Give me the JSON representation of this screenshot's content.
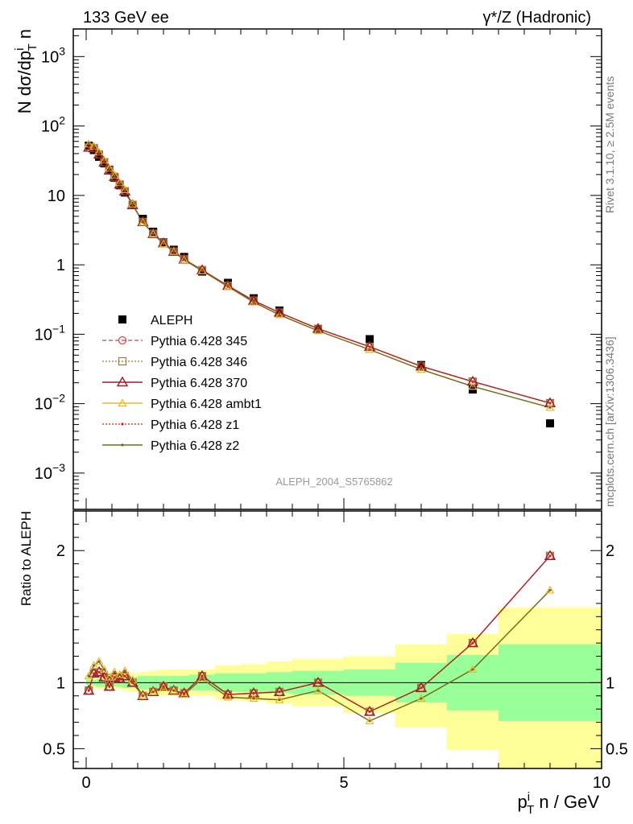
{
  "header": {
    "left": "133 GeV ee",
    "right": "γ*/Z (Hadronic)"
  },
  "side_labels": {
    "rivet": "Rivet 3.1.10, ≥ 2.5M events",
    "source": "mcplots.cern.ch [arXiv:1306.3436]"
  },
  "analysis_tag": "ALEPH_2004_S5765862",
  "colors": {
    "data": "#000000",
    "p345": "#c8464b",
    "p346": "#a0783c",
    "p370": "#9b1e28",
    "ambt1": "#f0b428",
    "z1": "#dc1e14",
    "z2": "#6e6e1e",
    "band_inner": "#99ff99",
    "band_outer": "#ffff99"
  },
  "chart_data": [
    {
      "type": "scatter",
      "panel": "main",
      "ylabel": "N dσ/dp_T^i n",
      "yscale": "log",
      "ylim": [
        0.0003,
        2500
      ],
      "xlim": [
        -0.25,
        10
      ],
      "yticks": [
        "10^-3",
        "10^-2",
        "10^-1",
        "1",
        "10",
        "10^2",
        "10^3"
      ],
      "legend_position": "left-middle",
      "x": [
        0.05,
        0.15,
        0.25,
        0.35,
        0.45,
        0.55,
        0.65,
        0.75,
        0.9,
        1.1,
        1.3,
        1.5,
        1.7,
        1.9,
        2.25,
        2.75,
        3.25,
        3.75,
        4.5,
        5.5,
        6.5,
        7.5,
        9.0
      ],
      "series": [
        {
          "name": "ALEPH",
          "key": "data",
          "values": [
            52,
            45,
            36,
            29,
            23.5,
            18,
            14,
            11,
            7.3,
            4.6,
            3.0,
            2.1,
            1.65,
            1.3,
            0.8,
            0.55,
            0.33,
            0.22,
            0.12,
            0.085,
            0.036,
            0.016,
            0.0052
          ]
        },
        {
          "name": "Pythia 6.428 345",
          "key": "p345",
          "values": [
            49,
            48,
            39,
            30,
            23,
            18.5,
            14.4,
            11.5,
            7.3,
            4.15,
            2.8,
            2.05,
            1.55,
            1.2,
            0.84,
            0.5,
            0.305,
            0.205,
            0.12,
            0.066,
            0.0345,
            0.0208,
            0.0102
          ]
        },
        {
          "name": "Pythia 6.428 346",
          "key": "p346",
          "values": [
            49,
            48,
            39,
            30,
            23,
            18.5,
            14.4,
            11.5,
            7.3,
            4.15,
            2.8,
            2.05,
            1.55,
            1.2,
            0.84,
            0.5,
            0.305,
            0.205,
            0.12,
            0.066,
            0.0345,
            0.0208,
            0.0102
          ]
        },
        {
          "name": "Pythia 6.428 370",
          "key": "p370",
          "values": [
            49,
            48,
            39,
            30,
            23,
            18.5,
            14.4,
            11.5,
            7.3,
            4.15,
            2.8,
            2.05,
            1.55,
            1.2,
            0.84,
            0.5,
            0.305,
            0.205,
            0.12,
            0.066,
            0.0345,
            0.0208,
            0.0102
          ]
        },
        {
          "name": "Pythia 6.428 ambt1",
          "key": "ambt1",
          "values": [
            55,
            51,
            42,
            32,
            24.5,
            19.5,
            15.2,
            12,
            7.5,
            4.1,
            2.8,
            2.0,
            1.55,
            1.18,
            0.82,
            0.485,
            0.29,
            0.19,
            0.112,
            0.06,
            0.031,
            0.0177,
            0.0088
          ]
        },
        {
          "name": "Pythia 6.428 z1",
          "key": "z1",
          "values": [
            49,
            48,
            39,
            30,
            23,
            18.5,
            14.4,
            11.5,
            7.3,
            4.15,
            2.8,
            2.05,
            1.55,
            1.2,
            0.84,
            0.5,
            0.305,
            0.205,
            0.12,
            0.066,
            0.0345,
            0.0208,
            0.0102
          ]
        },
        {
          "name": "Pythia 6.428 z2",
          "key": "z2",
          "values": [
            55,
            51,
            42,
            32,
            24.5,
            19.5,
            15.2,
            12,
            7.5,
            4.1,
            2.8,
            2.0,
            1.55,
            1.18,
            0.82,
            0.485,
            0.29,
            0.19,
            0.112,
            0.06,
            0.031,
            0.0177,
            0.0088
          ]
        }
      ]
    },
    {
      "type": "line",
      "panel": "ratio",
      "xlabel": "p_T^i n / GeV",
      "ylabel": "Ratio to ALEPH",
      "ylim": [
        0.35,
        2.3
      ],
      "xlim": [
        -0.25,
        10
      ],
      "xticks": [
        0,
        5,
        10
      ],
      "yticks": [
        0.5,
        1,
        2
      ],
      "x": [
        0.05,
        0.15,
        0.25,
        0.35,
        0.45,
        0.55,
        0.65,
        0.75,
        0.9,
        1.1,
        1.3,
        1.5,
        1.7,
        1.9,
        2.25,
        2.75,
        3.25,
        3.75,
        4.5,
        5.5,
        6.5,
        7.5,
        9.0
      ],
      "series": [
        {
          "name": "Pythia 6.428 345",
          "key": "p345",
          "values": [
            0.94,
            1.07,
            1.08,
            1.04,
            0.97,
            1.04,
            1.03,
            1.05,
            1.0,
            0.9,
            0.93,
            0.97,
            0.94,
            0.92,
            1.05,
            0.91,
            0.92,
            0.93,
            1.0,
            0.78,
            0.96,
            1.3,
            1.96
          ]
        },
        {
          "name": "Pythia 6.428 346",
          "key": "p346",
          "values": [
            0.94,
            1.07,
            1.08,
            1.04,
            0.97,
            1.04,
            1.03,
            1.05,
            1.0,
            0.9,
            0.93,
            0.97,
            0.94,
            0.92,
            1.05,
            0.91,
            0.92,
            0.93,
            1.0,
            0.78,
            0.96,
            1.3,
            1.96
          ]
        },
        {
          "name": "Pythia 6.428 370",
          "key": "p370",
          "values": [
            0.94,
            1.07,
            1.08,
            1.04,
            0.97,
            1.04,
            1.03,
            1.05,
            1.0,
            0.9,
            0.93,
            0.97,
            0.94,
            0.92,
            1.05,
            0.91,
            0.92,
            0.93,
            1.0,
            0.78,
            0.96,
            1.3,
            1.96
          ]
        },
        {
          "name": "Pythia 6.428 ambt1",
          "key": "ambt1",
          "values": [
            1.05,
            1.13,
            1.16,
            1.1,
            1.04,
            1.08,
            1.06,
            1.09,
            1.02,
            0.9,
            0.93,
            0.96,
            0.94,
            0.91,
            1.03,
            0.89,
            0.88,
            0.87,
            0.94,
            0.71,
            0.88,
            1.1,
            1.7
          ]
        },
        {
          "name": "Pythia 6.428 z1",
          "key": "z1",
          "values": [
            0.94,
            1.07,
            1.08,
            1.04,
            0.97,
            1.04,
            1.03,
            1.05,
            1.0,
            0.9,
            0.93,
            0.97,
            0.94,
            0.92,
            1.05,
            0.91,
            0.92,
            0.93,
            1.0,
            0.78,
            0.96,
            1.3,
            1.96
          ]
        },
        {
          "name": "Pythia 6.428 z2",
          "key": "z2",
          "values": [
            1.05,
            1.13,
            1.16,
            1.1,
            1.04,
            1.08,
            1.06,
            1.09,
            1.02,
            0.9,
            0.93,
            0.96,
            0.94,
            0.91,
            1.03,
            0.89,
            0.88,
            0.87,
            0.94,
            0.71,
            0.88,
            1.1,
            1.7
          ]
        }
      ],
      "uncertainty_bands": [
        {
          "x0": 0.0,
          "x1": 0.1,
          "inner": [
            0.98,
            1.02
          ],
          "outer": [
            0.96,
            1.04
          ]
        },
        {
          "x0": 0.1,
          "x1": 0.2,
          "inner": [
            0.98,
            1.02
          ],
          "outer": [
            0.96,
            1.04
          ]
        },
        {
          "x0": 0.2,
          "x1": 0.3,
          "inner": [
            0.97,
            1.03
          ],
          "outer": [
            0.95,
            1.05
          ]
        },
        {
          "x0": 0.3,
          "x1": 0.4,
          "inner": [
            0.97,
            1.03
          ],
          "outer": [
            0.95,
            1.05
          ]
        },
        {
          "x0": 0.4,
          "x1": 0.5,
          "inner": [
            0.97,
            1.03
          ],
          "outer": [
            0.95,
            1.05
          ]
        },
        {
          "x0": 0.5,
          "x1": 0.6,
          "inner": [
            0.97,
            1.03
          ],
          "outer": [
            0.95,
            1.05
          ]
        },
        {
          "x0": 0.6,
          "x1": 0.7,
          "inner": [
            0.97,
            1.03
          ],
          "outer": [
            0.95,
            1.05
          ]
        },
        {
          "x0": 0.7,
          "x1": 0.8,
          "inner": [
            0.96,
            1.04
          ],
          "outer": [
            0.94,
            1.06
          ]
        },
        {
          "x0": 0.8,
          "x1": 1.0,
          "inner": [
            0.96,
            1.04
          ],
          "outer": [
            0.93,
            1.07
          ]
        },
        {
          "x0": 1.0,
          "x1": 1.2,
          "inner": [
            0.95,
            1.05
          ],
          "outer": [
            0.92,
            1.08
          ]
        },
        {
          "x0": 1.2,
          "x1": 1.4,
          "inner": [
            0.95,
            1.05
          ],
          "outer": [
            0.91,
            1.09
          ]
        },
        {
          "x0": 1.4,
          "x1": 1.6,
          "inner": [
            0.95,
            1.05
          ],
          "outer": [
            0.9,
            1.1
          ]
        },
        {
          "x0": 1.6,
          "x1": 1.8,
          "inner": [
            0.95,
            1.05
          ],
          "outer": [
            0.9,
            1.1
          ]
        },
        {
          "x0": 1.8,
          "x1": 2.0,
          "inner": [
            0.95,
            1.05
          ],
          "outer": [
            0.9,
            1.1
          ]
        },
        {
          "x0": 2.0,
          "x1": 2.5,
          "inner": [
            0.94,
            1.06
          ],
          "outer": [
            0.9,
            1.1
          ]
        },
        {
          "x0": 2.5,
          "x1": 3.0,
          "inner": [
            0.93,
            1.07
          ],
          "outer": [
            0.87,
            1.13
          ]
        },
        {
          "x0": 3.0,
          "x1": 3.5,
          "inner": [
            0.93,
            1.07
          ],
          "outer": [
            0.86,
            1.14
          ]
        },
        {
          "x0": 3.5,
          "x1": 4.0,
          "inner": [
            0.92,
            1.08
          ],
          "outer": [
            0.84,
            1.16
          ]
        },
        {
          "x0": 4.0,
          "x1": 5.0,
          "inner": [
            0.91,
            1.09
          ],
          "outer": [
            0.82,
            1.18
          ]
        },
        {
          "x0": 5.0,
          "x1": 6.0,
          "inner": [
            0.9,
            1.1
          ],
          "outer": [
            0.77,
            1.2
          ]
        },
        {
          "x0": 6.0,
          "x1": 7.0,
          "inner": [
            0.85,
            1.15
          ],
          "outer": [
            0.66,
            1.29
          ]
        },
        {
          "x0": 7.0,
          "x1": 8.0,
          "inner": [
            0.79,
            1.21
          ],
          "outer": [
            0.49,
            1.37
          ]
        },
        {
          "x0": 8.0,
          "x1": 10.0,
          "inner": [
            0.71,
            1.29
          ],
          "outer": [
            0.35,
            1.57
          ]
        }
      ]
    }
  ]
}
